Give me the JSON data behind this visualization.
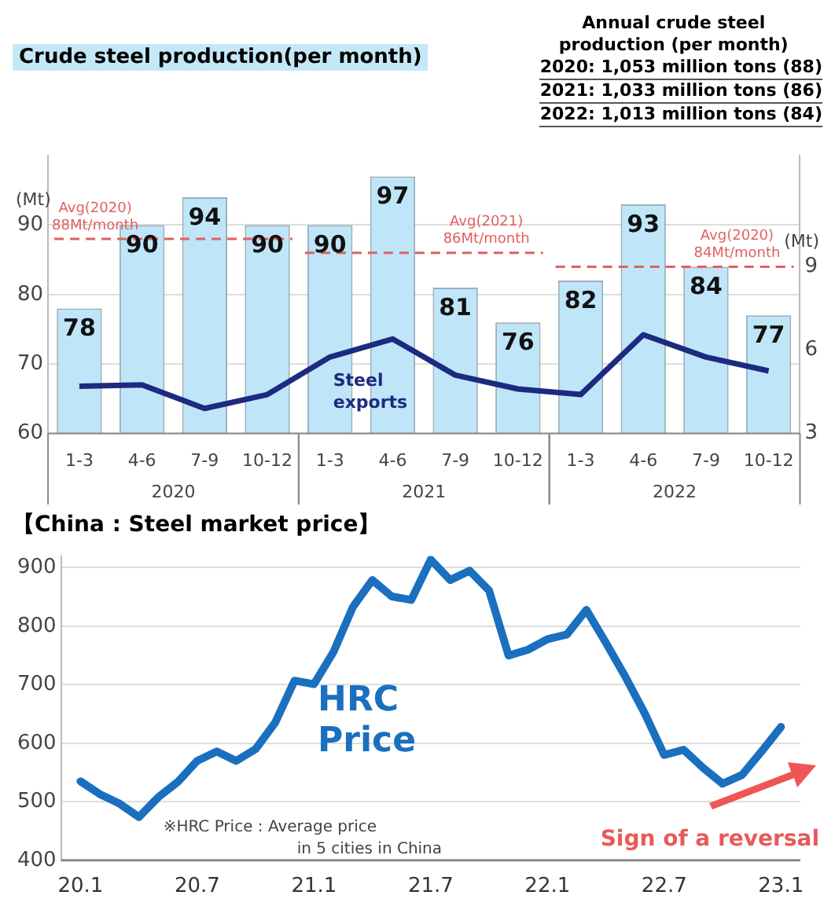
{
  "chart_data": [
    {
      "type": "bar",
      "title": "Crude steel production(per month)",
      "ylabel": "(Mt)",
      "y2label": "(Mt)",
      "categories": [
        "1-3",
        "4-6",
        "7-9",
        "10-12",
        "1-3",
        "4-6",
        "7-9",
        "10-12",
        "1-3",
        "4-6",
        "7-9",
        "10-12"
      ],
      "series": [
        {
          "type": "bar",
          "color": "#bfe6f8",
          "values": [
            78,
            90,
            94,
            90,
            90,
            97,
            81,
            76,
            82,
            93,
            84,
            77
          ],
          "value_labels": [
            "78",
            "90",
            "94",
            "90",
            "90",
            "97",
            "81",
            "76",
            "82",
            "93",
            "84",
            "77"
          ]
        },
        {
          "type": "line",
          "name": "Steel exports",
          "axis": "y2",
          "color": "#1c2a80",
          "values": [
            4.7,
            4.75,
            3.9,
            4.4,
            5.75,
            6.4,
            5.1,
            4.6,
            4.4,
            6.55,
            5.75,
            5.25
          ]
        }
      ],
      "ylim": [
        60,
        100
      ],
      "yticks": [
        60,
        70,
        80,
        90
      ],
      "y2lim": [
        3,
        13
      ],
      "y2ticks": [
        3,
        6,
        9
      ],
      "ref_lines": [
        {
          "axis": "y",
          "value": 88,
          "label": "Avg(2020) 88Mt/month",
          "color": "#e06060",
          "line_style": "dashed"
        },
        {
          "axis": "y",
          "value": 86,
          "label": "Avg(2021) 86Mt/month",
          "color": "#e06060",
          "line_style": "dashed"
        },
        {
          "axis": "y",
          "value": 84,
          "label": "Avg(2020) 84Mt/month",
          "color": "#e06060",
          "line_style": "dashed"
        }
      ],
      "annotations": [
        "Annual crude steel production (per month)",
        "2020: 1,053 million tons (88)",
        "2021: 1,033 million tons (86)",
        "2022: 1,013 million tons (84)",
        "2020",
        "2021",
        "2022"
      ],
      "grid": "y",
      "legend": false,
      "marker": "none"
    },
    {
      "type": "line",
      "title": "【China : Steel market price】",
      "x": [
        "2020-01",
        "2020-02",
        "2020-03",
        "2020-04",
        "2020-05",
        "2020-06",
        "2020-07",
        "2020-08",
        "2020-09",
        "2020-10",
        "2020-11",
        "2020-12",
        "2021-01",
        "2021-02",
        "2021-03",
        "2021-04",
        "2021-05",
        "2021-06",
        "2021-07",
        "2021-08",
        "2021-09",
        "2021-10",
        "2021-11",
        "2021-12",
        "2022-01",
        "2022-02",
        "2022-03",
        "2022-04",
        "2022-05",
        "2022-06",
        "2022-07",
        "2022-08",
        "2022-09",
        "2022-10",
        "2022-11",
        "2022-12",
        "2023-01"
      ],
      "series": [
        {
          "name": "HRC Price",
          "color": "#1a6fbf",
          "values": [
            535,
            513,
            497,
            474,
            508,
            534,
            570,
            586,
            570,
            590,
            635,
            707,
            701,
            756,
            833,
            879,
            851,
            845,
            914,
            879,
            895,
            861,
            750,
            760,
            778,
            786,
            828,
            772,
            714,
            651,
            580,
            589,
            558,
            531,
            546,
            586,
            628
          ]
        }
      ],
      "xlim": [
        "2019-12",
        "2023-02"
      ],
      "xticks": [
        {
          "value": "2020-01",
          "label": "20.1"
        },
        {
          "value": "2020-07",
          "label": "20.7"
        },
        {
          "value": "2021-01",
          "label": "21.1"
        },
        {
          "value": "2021-07",
          "label": "21.7"
        },
        {
          "value": "2022-01",
          "label": "22.1"
        },
        {
          "value": "2022-07",
          "label": "22.7"
        },
        {
          "value": "2023-01",
          "label": "23.1"
        }
      ],
      "ylim": [
        400,
        920
      ],
      "yticks": [
        400,
        500,
        600,
        700,
        800,
        900
      ],
      "annotations": [
        "※HRC Price : Average price in 5 cities in China",
        "Sign of a reversal"
      ],
      "grid": "y",
      "legend": false,
      "marker": "none"
    }
  ]
}
